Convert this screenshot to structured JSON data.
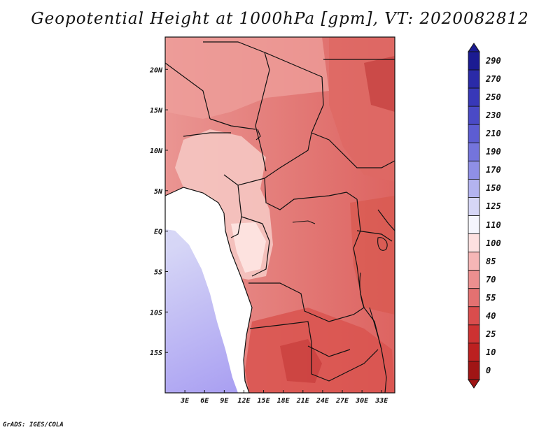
{
  "title": "Geopotential Height at 1000hPa [gpm], VT: 2020082812",
  "credit": "GrADS: IGES/COLA",
  "map": {
    "lon_ticks": [
      "3E",
      "6E",
      "9E",
      "12E",
      "15E",
      "18E",
      "21E",
      "24E",
      "27E",
      "30E",
      "33E"
    ],
    "lat_ticks": [
      "20N",
      "15N",
      "10N",
      "5N",
      "EQ",
      "5S",
      "10S",
      "15S"
    ],
    "lon_range": [
      0,
      35
    ],
    "lat_range": [
      -20,
      24
    ]
  },
  "colorbar": {
    "labels": [
      "290",
      "270",
      "250",
      "230",
      "210",
      "190",
      "170",
      "150",
      "125",
      "110",
      "100",
      "85",
      "70",
      "55",
      "40",
      "25",
      "10",
      "0"
    ],
    "colors": [
      "#1b1b92",
      "#2a2aa8",
      "#3838b8",
      "#4a4ac6",
      "#5d5dd2",
      "#7474dc",
      "#8f8fe6",
      "#b3b3f0",
      "#d6d6f6",
      "#f5f5fd",
      "#fde0e0",
      "#f6b6b6",
      "#ec8f8f",
      "#e37171",
      "#d94d4d",
      "#cd3232",
      "#bc2020",
      "#a01515"
    ]
  },
  "colors": {
    "ocean_near": "#ffffff",
    "ocean_far": "#d8d8f4",
    "ocean_deep": "#a79df2",
    "land_main": "#e58a87",
    "land_north": "#de6a66",
    "land_low": "#f5c8c4",
    "land_dark": "#cf4b49",
    "border": "#111111"
  }
}
